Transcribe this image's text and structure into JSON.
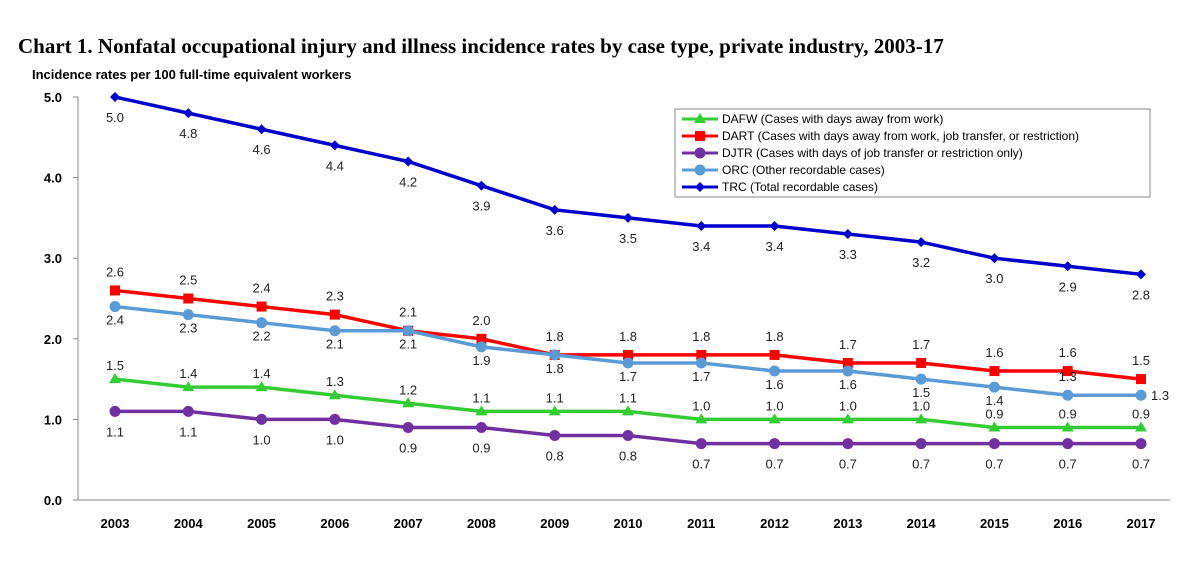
{
  "chart_data": {
    "type": "line",
    "title": "Chart 1. Nonfatal occupational injury and illness incidence rates by case type, private industry, 2003-17",
    "xlabel": "",
    "ylabel": "Incidence rates per 100 full-time equivalent workers",
    "ylim": [
      0,
      5
    ],
    "yticks": [
      "0.0",
      "1.0",
      "2.0",
      "3.0",
      "4.0",
      "5.0"
    ],
    "grid": false,
    "legend_position": "top-right",
    "categories": [
      "2003",
      "2004",
      "2005",
      "2006",
      "2007",
      "2008",
      "2009",
      "2010",
      "2011",
      "2012",
      "2013",
      "2014",
      "2015",
      "2016",
      "2017"
    ],
    "series": [
      {
        "name": "DAFW (Cases with days away from work)",
        "color": "#33cc33",
        "marker": "triangle",
        "values": [
          1.5,
          1.4,
          1.4,
          1.3,
          1.2,
          1.1,
          1.1,
          1.1,
          1.0,
          1.0,
          1.0,
          1.0,
          0.9,
          0.9,
          0.9
        ]
      },
      {
        "name": "DART (Cases with days away from work, job transfer, or restriction)",
        "color": "#ff0000",
        "marker": "square",
        "values": [
          2.6,
          2.5,
          2.4,
          2.3,
          2.1,
          2.0,
          1.8,
          1.8,
          1.8,
          1.8,
          1.7,
          1.7,
          1.6,
          1.6,
          1.5
        ]
      },
      {
        "name": "DJTR (Cases with days of job transfer or restriction only)",
        "color": "#7030a0",
        "marker": "circle",
        "values": [
          1.1,
          1.1,
          1.0,
          1.0,
          0.9,
          0.9,
          0.8,
          0.8,
          0.7,
          0.7,
          0.7,
          0.7,
          0.7,
          0.7,
          0.7
        ]
      },
      {
        "name": "ORC (Other recordable cases)",
        "color": "#5b9bd5",
        "marker": "circle",
        "values": [
          2.4,
          2.3,
          2.2,
          2.1,
          2.1,
          1.9,
          1.8,
          1.7,
          1.7,
          1.6,
          1.6,
          1.5,
          1.4,
          1.3,
          1.3
        ]
      },
      {
        "name": "TRC (Total recordable cases)",
        "color": "#0000cc",
        "marker": "diamond",
        "values": [
          5.0,
          4.8,
          4.6,
          4.4,
          4.2,
          3.9,
          3.6,
          3.5,
          3.4,
          3.4,
          3.3,
          3.2,
          3.0,
          2.9,
          2.8
        ]
      }
    ]
  }
}
